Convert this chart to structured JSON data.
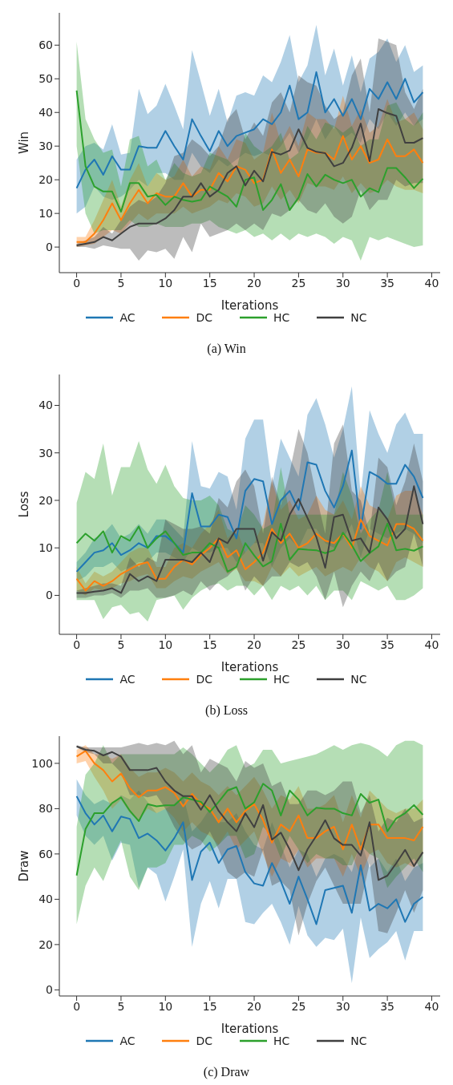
{
  "chart_data": [
    {
      "type": "line",
      "title": "(a) Win",
      "xlabel": "Iterations",
      "ylabel": "Win",
      "xlim": [
        -1.95,
        40.95
      ],
      "xticks": [
        0,
        5,
        10,
        15,
        20,
        25,
        30,
        35,
        40
      ],
      "ylim": [
        -7.6,
        69.6
      ],
      "yticks": [
        0,
        10,
        20,
        30,
        40,
        50,
        60
      ],
      "legend": "bottom",
      "marker": "none",
      "line_style": "solid",
      "x": [
        0,
        1,
        2,
        3,
        4,
        5,
        6,
        7,
        8,
        9,
        10,
        11,
        12,
        13,
        14,
        15,
        16,
        17,
        18,
        19,
        20,
        21,
        22,
        23,
        24,
        25,
        26,
        27,
        28,
        29,
        30,
        31,
        32,
        33,
        34,
        35,
        36,
        37,
        38,
        39
      ],
      "series": [
        {
          "name": "AC",
          "color": "#1f77b4",
          "values": [
            17.5,
            23,
            26,
            21.5,
            27,
            23,
            23,
            30,
            29.5,
            29.5,
            34.5,
            30,
            26,
            38,
            33,
            28.5,
            34.5,
            30,
            33,
            34,
            35,
            38,
            36.5,
            40,
            48,
            38,
            40,
            52,
            40,
            44,
            39,
            44,
            38,
            47,
            44,
            49,
            44,
            50,
            43,
            46
          ],
          "lower": [
            10,
            12,
            18,
            15,
            14,
            15,
            17,
            20,
            18,
            22,
            22,
            20,
            20,
            28,
            24,
            22,
            26,
            24,
            26,
            28,
            27,
            28,
            27,
            30,
            34,
            28,
            32,
            38,
            32,
            36,
            32,
            34,
            31,
            38,
            35,
            40,
            36,
            40,
            36,
            38
          ],
          "upper": [
            26,
            30,
            31,
            29,
            36.5,
            27.5,
            28,
            47,
            39.5,
            42,
            48.5,
            42,
            35,
            58.5,
            49,
            39,
            47,
            37,
            45,
            46,
            45,
            51,
            49,
            55,
            63,
            49,
            54,
            66,
            51,
            59,
            48,
            57,
            46,
            56,
            58,
            62,
            55,
            60,
            52,
            54
          ]
        },
        {
          "name": "DC",
          "color": "#ff7f0e",
          "values": [
            1.5,
            1.5,
            4,
            8,
            13,
            8,
            13,
            17,
            13,
            16,
            15,
            15,
            19,
            15,
            17,
            17,
            22,
            19.5,
            24,
            23,
            19,
            20,
            29,
            22,
            26,
            21,
            29,
            28,
            28,
            26,
            33,
            26,
            30,
            25,
            26,
            32,
            27,
            27,
            29,
            25
          ],
          "lower": [
            0,
            0.5,
            1,
            3,
            5,
            4,
            7,
            10,
            8,
            10,
            10,
            10,
            12,
            10,
            11,
            12,
            14,
            13,
            16,
            15,
            12,
            13,
            18,
            14,
            17,
            13,
            19,
            18,
            18,
            17,
            21,
            16,
            19,
            16,
            17,
            20,
            18,
            17,
            17,
            16
          ],
          "upper": [
            3,
            3,
            8,
            14,
            20,
            12,
            20,
            25,
            18,
            22,
            20,
            21,
            26,
            21,
            24,
            23,
            30,
            26,
            32,
            31,
            26,
            28,
            40,
            31,
            36,
            30,
            40,
            38,
            38,
            35,
            45,
            36,
            41,
            34,
            36,
            44,
            37,
            38,
            40,
            35
          ]
        },
        {
          "name": "HC",
          "color": "#2ca02c",
          "values": [
            46.5,
            24,
            18,
            16.5,
            16.5,
            10.5,
            19,
            19,
            15,
            15.5,
            12.5,
            15,
            14,
            13.5,
            14,
            18,
            16.5,
            15,
            12,
            20,
            20.7,
            11,
            14,
            18.7,
            11,
            14.7,
            21.7,
            18,
            21.5,
            20,
            19,
            20,
            15,
            17.5,
            16.3,
            23.5,
            23.5,
            20.7,
            17.5,
            20.3
          ],
          "lower": [
            30,
            10,
            4,
            5,
            5,
            5,
            8,
            6,
            6,
            7,
            6,
            6,
            6,
            7,
            7,
            8,
            6,
            5,
            4,
            5,
            3,
            4,
            2,
            4,
            2,
            4,
            3,
            4,
            3,
            1,
            3,
            2,
            -4,
            3,
            2,
            3,
            2,
            1,
            0,
            0.5
          ],
          "upper": [
            61,
            38,
            32,
            28,
            29,
            18,
            32,
            33,
            24,
            26,
            20,
            25,
            22,
            21,
            22,
            28,
            27,
            26,
            23,
            34,
            30,
            28,
            30,
            34,
            26,
            28,
            36,
            32,
            37,
            36,
            34,
            36,
            30,
            32,
            32,
            42,
            43,
            38,
            36,
            40
          ]
        },
        {
          "name": "NC",
          "color": "#404040",
          "values": [
            0.5,
            1,
            1.5,
            3,
            2,
            4,
            6,
            7,
            7,
            7,
            8.5,
            11,
            15,
            15,
            19,
            15,
            17,
            22,
            24,
            18.3,
            22.7,
            19.5,
            28.3,
            27.5,
            28.7,
            35,
            29.5,
            28.3,
            27.9,
            24,
            25,
            29.5,
            36.7,
            25.5,
            41,
            39.8,
            39,
            31,
            31,
            32.4
          ],
          "lower": [
            0,
            0,
            -0.5,
            0.5,
            0,
            -0.5,
            -0.5,
            -4,
            -1,
            -1.5,
            -0.5,
            -3.5,
            3,
            -1.5,
            7,
            3,
            4,
            5,
            7,
            5,
            7,
            5,
            10,
            9,
            11,
            14,
            11,
            10,
            13,
            9,
            7,
            9,
            17,
            11,
            14,
            14,
            20,
            18,
            19,
            19
          ],
          "upper": [
            1,
            2,
            3,
            6,
            4,
            8,
            12,
            14,
            13,
            15,
            19,
            27,
            28,
            32,
            30,
            27,
            30,
            38,
            41,
            32,
            37,
            33,
            43,
            46,
            40,
            51,
            49,
            48,
            42,
            38,
            40,
            51,
            56,
            40,
            62,
            61,
            60,
            46,
            41,
            47
          ]
        }
      ]
    },
    {
      "type": "line",
      "title": "(b) Loss",
      "xlabel": "Iterations",
      "ylabel": "Loss",
      "xlim": [
        -1.95,
        40.95
      ],
      "xticks": [
        0,
        5,
        10,
        15,
        20,
        25,
        30,
        35,
        40
      ],
      "ylim": [
        -8.2,
        46.5
      ],
      "yticks": [
        0,
        10,
        20,
        30,
        40
      ],
      "legend": "bottom",
      "marker": "none",
      "line_style": "solid",
      "x": [
        0,
        1,
        2,
        3,
        4,
        5,
        6,
        7,
        8,
        9,
        10,
        11,
        12,
        13,
        14,
        15,
        16,
        17,
        18,
        19,
        20,
        21,
        22,
        23,
        24,
        25,
        26,
        27,
        28,
        29,
        30,
        31,
        32,
        33,
        34,
        35,
        36,
        37,
        38,
        39
      ],
      "series": [
        {
          "name": "AC",
          "color": "#1f77b4",
          "values": [
            5,
            7,
            9,
            9.5,
            11,
            8.5,
            9.5,
            11,
            10,
            12.5,
            12.5,
            11,
            9,
            21.5,
            14.5,
            14.5,
            17,
            16.5,
            12,
            22,
            24.5,
            24,
            15,
            20,
            22,
            18,
            28,
            27.5,
            22,
            18.5,
            23,
            30.5,
            14,
            26,
            25,
            23.5,
            23.5,
            27.5,
            25,
            20.5
          ],
          "lower": [
            3,
            4,
            6,
            6,
            7,
            5,
            6,
            7,
            7,
            9,
            9,
            8,
            7,
            10,
            9,
            9,
            10,
            10,
            7,
            9,
            11,
            11,
            6,
            10,
            12,
            10,
            14,
            14,
            11,
            10,
            12,
            15,
            8,
            14,
            13,
            12,
            13,
            14,
            13,
            11
          ],
          "upper": [
            7,
            9,
            12,
            13,
            15,
            12,
            13,
            15,
            13,
            16,
            16,
            14,
            12,
            32.5,
            23,
            22.5,
            26,
            25,
            18,
            33,
            37,
            37,
            23,
            33,
            29,
            25,
            38,
            41.5,
            36,
            29,
            35,
            44,
            21,
            39,
            34,
            30,
            36,
            38.5,
            34,
            34
          ]
        },
        {
          "name": "DC",
          "color": "#ff7f0e",
          "values": [
            3.5,
            1,
            3,
            2,
            3,
            4.5,
            5.5,
            6.5,
            7,
            3.5,
            3.5,
            6,
            7.5,
            6.5,
            8.5,
            10,
            12,
            8,
            9.5,
            5.5,
            7,
            9,
            14,
            11,
            13,
            10,
            11,
            13,
            11.5,
            11,
            13,
            10,
            16,
            12.5,
            11.5,
            10.5,
            15,
            15,
            14,
            11.5
          ],
          "lower": [
            1,
            0,
            1.5,
            1,
            1.5,
            2.5,
            3,
            4,
            4.5,
            1.5,
            1.5,
            3,
            4,
            3.5,
            5,
            6,
            7,
            4.5,
            5.5,
            3,
            3,
            2,
            6,
            4,
            6,
            4,
            5,
            6,
            4,
            5,
            6,
            5,
            8,
            6,
            5,
            3,
            7,
            8,
            7,
            6
          ],
          "upper": [
            6,
            2.5,
            5,
            4,
            5,
            7,
            9,
            10,
            10,
            6,
            6,
            10,
            11,
            10,
            13,
            15,
            18,
            12,
            14,
            9,
            11,
            15,
            24,
            18,
            20,
            16,
            17,
            21,
            18,
            17,
            20,
            16,
            23,
            19,
            18,
            16,
            21,
            22,
            22,
            17
          ]
        },
        {
          "name": "HC",
          "color": "#2ca02c",
          "values": [
            11,
            13,
            11.5,
            13.5,
            9,
            12.5,
            11.5,
            14.5,
            10,
            12,
            13.5,
            11,
            8.5,
            9,
            9,
            11,
            10,
            5,
            6,
            11,
            8.4,
            6.1,
            7.2,
            15.1,
            7.5,
            9.8,
            9.6,
            9.5,
            8.9,
            9.5,
            13.2,
            10.6,
            7.2,
            8.9,
            10.3,
            15.1,
            9.5,
            9.8,
            9.4,
            10.3
          ],
          "lower": [
            -1,
            -1,
            -1,
            -5,
            -2.5,
            -2,
            -4,
            -3.5,
            -5.5,
            -1,
            -0.5,
            0,
            -3,
            -0.5,
            1,
            2,
            2.5,
            1,
            2,
            2,
            0,
            2,
            -1,
            2,
            1,
            2,
            0,
            2,
            -1,
            1,
            1,
            -1,
            3,
            2,
            1,
            2,
            -1,
            -1,
            0,
            1.5
          ],
          "upper": [
            19.5,
            26,
            24.5,
            32,
            21,
            27,
            27,
            32.5,
            26.5,
            23.5,
            27.5,
            23,
            20.5,
            20,
            20,
            21,
            19,
            14,
            13,
            19,
            17,
            14,
            15,
            27,
            17,
            17,
            17,
            17,
            17,
            17,
            26,
            21,
            13,
            16,
            18,
            26,
            17,
            17,
            17,
            17
          ]
        },
        {
          "name": "NC",
          "color": "#404040",
          "values": [
            0.5,
            0.5,
            0.8,
            1,
            1.5,
            0.5,
            4.5,
            3,
            4,
            3,
            7.5,
            7.5,
            7.5,
            7,
            9,
            7,
            12,
            11,
            14,
            14,
            14,
            7.3,
            13.3,
            11.5,
            17,
            20.3,
            16.3,
            12.3,
            5.8,
            16.5,
            17,
            11.5,
            12,
            9,
            18.5,
            16,
            12,
            14,
            23,
            15
          ],
          "lower": [
            -0.5,
            -0.5,
            0,
            0,
            0.5,
            -0.5,
            1,
            1,
            1.5,
            -0.5,
            -0.5,
            0,
            1,
            0,
            3,
            1,
            3,
            4,
            6,
            1,
            4,
            2,
            4,
            4,
            7,
            6,
            7,
            4,
            -1,
            5,
            -2.5,
            2,
            5,
            3,
            7,
            3,
            5,
            6,
            13,
            6
          ],
          "upper": [
            1,
            1.5,
            2,
            2.5,
            2.5,
            2,
            8,
            6,
            8,
            7,
            16,
            15,
            14,
            14,
            14.5,
            13,
            20.5,
            18.5,
            24,
            26.5,
            23,
            13,
            25,
            19,
            26,
            35,
            30,
            21,
            13,
            32,
            36,
            22,
            20,
            13,
            29,
            27,
            19,
            24,
            32,
            24
          ]
        }
      ]
    },
    {
      "type": "line",
      "title": "(c) Draw",
      "xlabel": "Iterations",
      "ylabel": "Draw",
      "xlim": [
        -1.95,
        40.95
      ],
      "xticks": [
        0,
        5,
        10,
        15,
        20,
        25,
        30,
        35,
        40
      ],
      "ylim": [
        -2.7,
        112
      ],
      "yticks": [
        0,
        20,
        40,
        60,
        80,
        100
      ],
      "legend": "bottom",
      "marker": "none",
      "line_style": "solid",
      "x": [
        0,
        1,
        2,
        3,
        4,
        5,
        6,
        7,
        8,
        9,
        10,
        11,
        12,
        13,
        14,
        15,
        16,
        17,
        18,
        19,
        20,
        21,
        22,
        23,
        24,
        25,
        26,
        27,
        28,
        29,
        30,
        31,
        32,
        33,
        34,
        35,
        36,
        37,
        38,
        39
      ],
      "series": [
        {
          "name": "AC",
          "color": "#1f77b4",
          "values": [
            85.5,
            78,
            73,
            77,
            70,
            76.5,
            75.5,
            67,
            69,
            66,
            61.5,
            67,
            74,
            48.5,
            61,
            65,
            56,
            62,
            63.5,
            52,
            47,
            46,
            56,
            48,
            38,
            50,
            40,
            29,
            44,
            45,
            46,
            34,
            55,
            35,
            38,
            36,
            40,
            30,
            38,
            41
          ],
          "lower": [
            77,
            68,
            64,
            68,
            57,
            65,
            64,
            45,
            54,
            51,
            39,
            50,
            62,
            19,
            38,
            48,
            36,
            49,
            49,
            30,
            29,
            34,
            38,
            30,
            20,
            37,
            24,
            19,
            23,
            22,
            27,
            3,
            32,
            14,
            18,
            21,
            26,
            13,
            26,
            26
          ],
          "upper": [
            93,
            86,
            82,
            84,
            82,
            86,
            84,
            88,
            83,
            78,
            80,
            82,
            86,
            70,
            74,
            80,
            74,
            74,
            78,
            70,
            64,
            62,
            74,
            64,
            54,
            62,
            60,
            50,
            58,
            60,
            58,
            52,
            66,
            54,
            58,
            52,
            58,
            48,
            54,
            56
          ]
        },
        {
          "name": "DC",
          "color": "#ff7f0e",
          "values": [
            103,
            105.5,
            100,
            97,
            92,
            95.5,
            89,
            85,
            88,
            88,
            89.5,
            87,
            81,
            86.5,
            82,
            80,
            74,
            80,
            74,
            79,
            82,
            75,
            65,
            73,
            70,
            77,
            67,
            67,
            70,
            72,
            62,
            73,
            62,
            73,
            73,
            67,
            67,
            67,
            66,
            72
          ],
          "lower": [
            100,
            101,
            94,
            88,
            80,
            84,
            78,
            75,
            80,
            78,
            80,
            76,
            70,
            74,
            70,
            68,
            64,
            70,
            62,
            66,
            70,
            60,
            50,
            58,
            56,
            62,
            54,
            58,
            58,
            58,
            50,
            60,
            50,
            60,
            62,
            56,
            54,
            56,
            54,
            60
          ],
          "upper": [
            106,
            108,
            104,
            104,
            102,
            104,
            98,
            94,
            96,
            96,
            98,
            96,
            92,
            96,
            92,
            90,
            86,
            90,
            86,
            90,
            94,
            88,
            80,
            86,
            84,
            90,
            80,
            80,
            82,
            86,
            74,
            86,
            76,
            88,
            84,
            80,
            78,
            80,
            80,
            84
          ]
        },
        {
          "name": "HC",
          "color": "#2ca02c",
          "values": [
            50.5,
            71,
            78,
            78,
            82.5,
            85,
            79,
            74.5,
            82,
            81,
            81.5,
            81.5,
            85,
            84,
            83,
            78.5,
            83,
            88,
            89.5,
            80,
            82.8,
            91,
            88,
            77,
            88,
            84,
            77,
            80.4,
            80,
            80,
            78,
            77,
            86.5,
            82.6,
            84,
            70,
            75.7,
            78,
            81.6,
            77.3
          ],
          "lower": [
            29,
            46,
            54,
            48,
            58,
            66,
            50,
            44,
            54,
            54,
            56,
            64,
            64,
            68,
            66,
            61,
            64,
            68,
            68,
            58,
            60,
            72,
            68,
            58,
            68,
            62,
            56,
            60,
            58,
            58,
            55,
            55,
            64,
            60,
            58,
            45,
            50,
            54,
            58,
            52
          ],
          "upper": [
            72,
            95,
            100,
            108,
            100,
            104,
            104,
            104,
            104,
            104,
            104,
            104,
            107,
            104,
            100,
            96,
            100,
            106,
            108,
            98,
            100,
            106,
            106,
            100,
            101,
            102,
            103,
            104,
            106,
            108,
            106,
            108,
            109,
            108,
            106,
            103,
            108,
            110,
            110,
            108
          ]
        },
        {
          "name": "NC",
          "color": "#404040",
          "values": [
            107.5,
            106,
            105.5,
            103.5,
            105,
            103,
            97,
            97,
            97,
            98,
            92,
            88,
            85.5,
            85.5,
            79.5,
            86,
            79,
            74,
            70,
            78,
            71.8,
            81.6,
            66.3,
            69.4,
            62,
            52.8,
            62,
            68,
            74.9,
            66.9,
            64,
            64,
            59.3,
            74,
            48.5,
            50.4,
            55.9,
            61.8,
            54.7,
            60.8
          ],
          "lower": [
            107,
            105,
            104,
            100,
            100,
            96,
            86,
            86,
            85,
            86,
            80,
            72,
            66,
            62,
            64,
            70,
            62,
            52,
            49,
            52,
            50,
            62,
            46,
            48,
            44,
            24,
            38,
            48,
            54,
            46,
            38,
            38,
            38,
            56,
            26,
            25,
            34,
            44,
            34,
            44
          ],
          "upper": [
            108,
            107,
            107,
            107,
            107,
            107,
            108,
            109,
            108,
            109,
            108,
            110,
            104,
            108,
            96,
            102,
            100,
            98,
            92,
            101,
            98,
            100,
            90,
            92,
            82,
            82,
            88,
            88,
            86,
            88,
            92,
            92,
            78,
            86,
            70,
            76,
            74,
            80,
            74,
            76
          ]
        }
      ]
    }
  ]
}
